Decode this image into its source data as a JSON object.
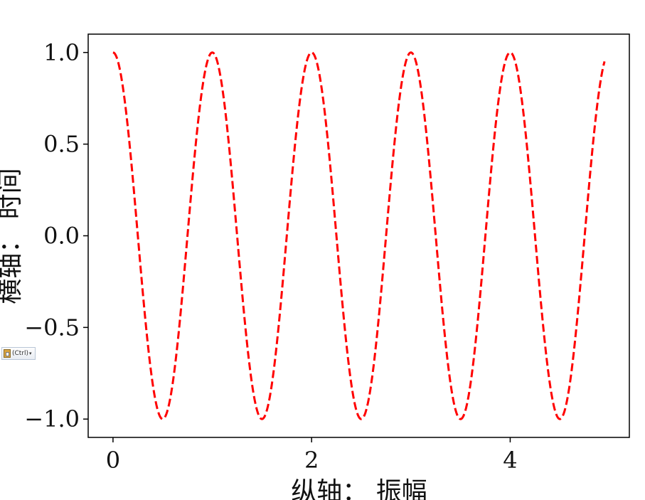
{
  "chart_data": {
    "type": "line",
    "title": "",
    "xlabel": "纵轴： 振幅",
    "ylabel": "横轴： 时间",
    "xlim": [
      -0.25,
      5.2
    ],
    "ylim": [
      -1.1,
      1.1
    ],
    "x_ticks": [
      "0",
      "2",
      "4"
    ],
    "x_tick_values": [
      0,
      2,
      4
    ],
    "y_ticks": [
      "1.0",
      "0.5",
      "0.0",
      "−0.5",
      "−1.0"
    ],
    "y_tick_values": [
      1.0,
      0.5,
      0.0,
      -0.5,
      -1.0
    ],
    "grid": false,
    "series": [
      {
        "function": "cos(2*pi*x)",
        "x_range": [
          0,
          4.95
        ],
        "style": "dashed",
        "color": "#ff0000"
      }
    ]
  },
  "widget": {
    "paste_label": "(Ctrl)",
    "icon": "clipboard-icon"
  }
}
